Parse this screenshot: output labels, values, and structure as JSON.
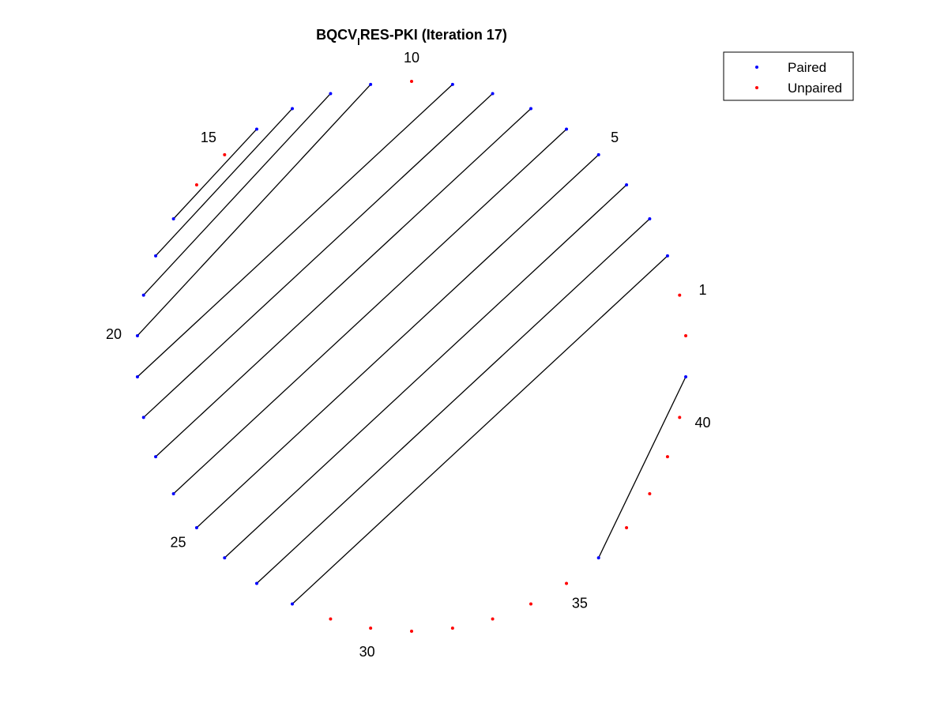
{
  "chart_data": {
    "type": "scatter",
    "subtype": "circular-arc-diagram",
    "title_main": "BQCV",
    "title_sub": "I",
    "title_rest": "RES-PKI (Iteration 17)",
    "n_points": 42,
    "index_labels": [
      1,
      5,
      10,
      15,
      20,
      25,
      30,
      35,
      40
    ],
    "pairs": [
      [
        2,
        28
      ],
      [
        3,
        27
      ],
      [
        4,
        26
      ],
      [
        5,
        25
      ],
      [
        6,
        24
      ],
      [
        7,
        23
      ],
      [
        8,
        22
      ],
      [
        9,
        21
      ],
      [
        11,
        20
      ],
      [
        12,
        19
      ],
      [
        13,
        18
      ],
      [
        14,
        17
      ],
      [
        41,
        36
      ]
    ],
    "unpaired": [
      42,
      1,
      10,
      15,
      16,
      29,
      30,
      31,
      32,
      33,
      34,
      35,
      37,
      38,
      39,
      40
    ],
    "legend": {
      "placement": "top-right",
      "entries": [
        {
          "label": "Paired",
          "color": "#0000ff"
        },
        {
          "label": "Unpaired",
          "color": "#ff0000"
        }
      ]
    },
    "colors": {
      "paired": "#0000ff",
      "unpaired": "#ff0000",
      "line": "#000000"
    }
  }
}
